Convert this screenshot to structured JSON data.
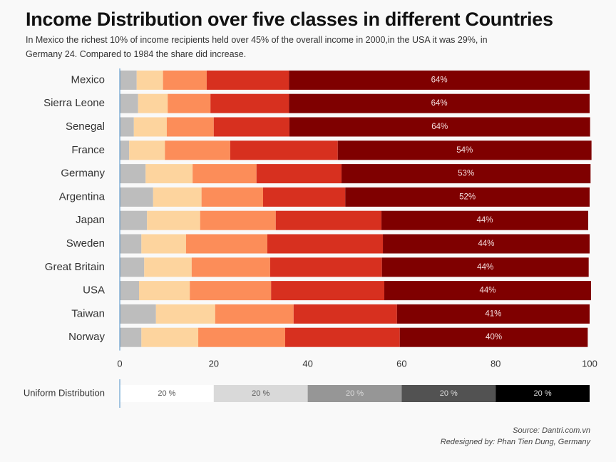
{
  "chart_data": {
    "type": "stacked-bar-horizontal",
    "title": "Income Distribution over five classes in different Countries",
    "subtitle": "In Mexico the richest 10% of income recipients held over 45% of the overall income in 2000,in the USA it was 29%, in Germany 24. Compared to 1984 the share did increase.",
    "categories": [
      "Mexico",
      "Sierra Leone",
      "Senegal",
      "France",
      "Germany",
      "Argentina",
      "Japan",
      "Sweden",
      "Great Britain",
      "USA",
      "Taiwan",
      "Norway"
    ],
    "series": [
      {
        "color": "#bdbdbd",
        "values": [
          3.6,
          3.9,
          3.0,
          2.0,
          5.5,
          7.1,
          5.8,
          4.6,
          5.2,
          4.1,
          7.7,
          4.6
        ]
      },
      {
        "color": "#fdd49e",
        "values": [
          5.6,
          6.3,
          7.0,
          7.6,
          10.0,
          10.3,
          11.3,
          9.5,
          10.1,
          10.8,
          12.6,
          12.1
        ]
      },
      {
        "color": "#fc8d59",
        "values": [
          9.3,
          9.1,
          10.0,
          13.9,
          13.6,
          13.1,
          16.1,
          17.3,
          16.7,
          17.3,
          16.7,
          18.5
        ]
      },
      {
        "color": "#d7301f",
        "values": [
          17.5,
          16.7,
          16.1,
          22.9,
          18.1,
          17.5,
          22.5,
          24.6,
          23.8,
          24.1,
          22.0,
          24.4
        ]
      },
      {
        "color": "#7f0000",
        "values": [
          64,
          64,
          64,
          54,
          53,
          52,
          44,
          44,
          44,
          44,
          41,
          40
        ],
        "value_labels": [
          "64%",
          "64%",
          "64%",
          "54%",
          "53%",
          "52%",
          "44%",
          "44%",
          "44%",
          "44%",
          "41%",
          "40%"
        ]
      }
    ],
    "xlim": [
      0,
      100
    ],
    "xticks": [
      0,
      20,
      40,
      60,
      80,
      100
    ],
    "reference": {
      "label": "Uniform Distribution",
      "values": [
        20,
        20,
        20,
        20,
        20
      ],
      "value_labels": [
        "20 %",
        "20 %",
        "20 %",
        "20 %",
        "20 %"
      ],
      "colors": [
        "#ffffff",
        "#d9d9d9",
        "#969696",
        "#525252",
        "#000000"
      ]
    },
    "source": "Source: Dantri.com.vn",
    "credit": "Redesigned by: Phan Tien Dung, Germany"
  }
}
